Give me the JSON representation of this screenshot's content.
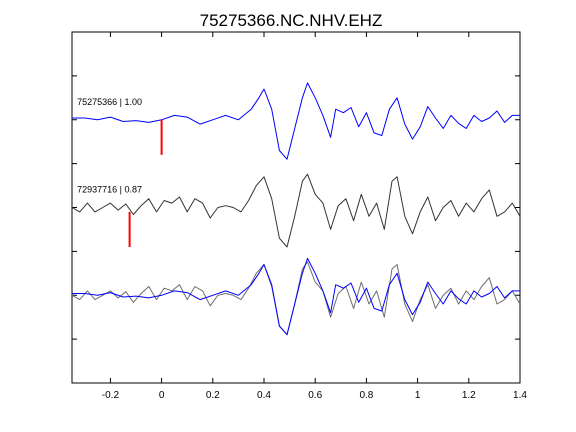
{
  "chart_data": {
    "type": "line",
    "title": "75275366.NC.NHV.EHZ",
    "xlabel": "",
    "ylabel": "",
    "xlim": [
      -0.35,
      1.4
    ],
    "xticks": [
      -0.2,
      0,
      0.2,
      0.4,
      0.6,
      0.8,
      1,
      1.2,
      1.4
    ],
    "xtick_labels": [
      "-0.2",
      "0",
      "0.2",
      "0.4",
      "0.6",
      "0.8",
      "1",
      "1.2",
      "1.4"
    ],
    "ylim": [
      0,
      4
    ],
    "yticks": [
      0.5,
      1,
      1.5,
      2,
      2.5,
      3,
      3.5
    ],
    "legend": "none",
    "grid": false,
    "colors": {
      "master": "#0000ff",
      "other": "#333333",
      "overlay_other": "#6e6e6e",
      "marker": "#ff0000"
    },
    "annotations": [
      {
        "text": "75275366 | 1.00",
        "x": -0.33,
        "y": 3.17
      },
      {
        "text": "72937716 | 0.87",
        "x": -0.33,
        "y": 2.17
      }
    ],
    "pick_markers": [
      {
        "x": 0.0,
        "y_from": 2.6,
        "y_to": 3.0,
        "trace": "75275366"
      },
      {
        "x": -0.125,
        "y_from": 1.55,
        "y_to": 1.95,
        "trace": "72937716"
      }
    ],
    "series": [
      {
        "id": "75275366",
        "offset": 3.0,
        "color": "#0000ff",
        "x": [
          -0.35,
          -0.3,
          -0.25,
          -0.2,
          -0.15,
          -0.1,
          -0.05,
          0.0,
          0.05,
          0.1,
          0.15,
          0.2,
          0.25,
          0.3,
          0.35,
          0.38,
          0.4,
          0.43,
          0.46,
          0.49,
          0.52,
          0.55,
          0.57,
          0.6,
          0.63,
          0.66,
          0.68,
          0.71,
          0.74,
          0.77,
          0.8,
          0.83,
          0.86,
          0.89,
          0.92,
          0.95,
          0.98,
          1.01,
          1.04,
          1.07,
          1.1,
          1.13,
          1.16,
          1.19,
          1.22,
          1.25,
          1.28,
          1.31,
          1.34,
          1.37,
          1.4
        ],
        "y": [
          0.02,
          0.02,
          0.0,
          0.03,
          -0.02,
          -0.01,
          -0.03,
          0.0,
          0.05,
          0.03,
          -0.05,
          0.0,
          0.05,
          0.0,
          0.12,
          0.25,
          0.35,
          0.12,
          -0.35,
          -0.45,
          -0.1,
          0.25,
          0.42,
          0.25,
          0.05,
          -0.2,
          0.12,
          0.08,
          0.14,
          -0.08,
          0.08,
          -0.15,
          -0.18,
          0.12,
          0.25,
          -0.05,
          -0.22,
          -0.08,
          0.15,
          0.02,
          -0.1,
          0.05,
          -0.04,
          -0.1,
          0.05,
          -0.02,
          0.02,
          0.1,
          -0.03,
          0.05,
          0.05
        ]
      },
      {
        "id": "72937716",
        "offset": 2.0,
        "color": "#333333",
        "x": [
          -0.35,
          -0.32,
          -0.29,
          -0.26,
          -0.23,
          -0.2,
          -0.17,
          -0.14,
          -0.11,
          -0.08,
          -0.05,
          -0.02,
          0.01,
          0.04,
          0.07,
          0.1,
          0.13,
          0.16,
          0.19,
          0.22,
          0.25,
          0.28,
          0.31,
          0.34,
          0.37,
          0.4,
          0.43,
          0.46,
          0.49,
          0.52,
          0.55,
          0.57,
          0.6,
          0.63,
          0.66,
          0.69,
          0.72,
          0.75,
          0.78,
          0.81,
          0.84,
          0.87,
          0.9,
          0.92,
          0.95,
          0.98,
          1.01,
          1.04,
          1.07,
          1.1,
          1.13,
          1.16,
          1.19,
          1.22,
          1.25,
          1.28,
          1.31,
          1.34,
          1.37,
          1.4
        ],
        "y": [
          0.0,
          -0.05,
          0.05,
          -0.05,
          0.0,
          0.05,
          -0.03,
          0.04,
          -0.08,
          0.02,
          0.1,
          -0.05,
          0.08,
          0.05,
          0.12,
          -0.05,
          0.1,
          0.05,
          -0.12,
          0.0,
          0.02,
          0.0,
          -0.05,
          0.08,
          0.25,
          0.35,
          0.1,
          -0.35,
          -0.45,
          -0.1,
          0.3,
          0.38,
          0.15,
          0.05,
          -0.25,
          0.02,
          0.1,
          -0.15,
          0.15,
          -0.1,
          0.05,
          -0.25,
          0.3,
          0.35,
          -0.1,
          -0.3,
          -0.05,
          0.12,
          -0.15,
          0.0,
          0.08,
          -0.1,
          0.05,
          -0.05,
          0.1,
          0.2,
          -0.1,
          -0.05,
          0.05,
          -0.1
        ]
      },
      {
        "id": "overlay-72937716",
        "offset": 1.0,
        "color": "#6e6e6e",
        "x": [
          -0.35,
          -0.32,
          -0.29,
          -0.26,
          -0.23,
          -0.2,
          -0.17,
          -0.14,
          -0.11,
          -0.08,
          -0.05,
          -0.02,
          0.01,
          0.04,
          0.07,
          0.1,
          0.13,
          0.16,
          0.19,
          0.22,
          0.25,
          0.28,
          0.31,
          0.34,
          0.37,
          0.4,
          0.43,
          0.46,
          0.49,
          0.52,
          0.55,
          0.57,
          0.6,
          0.63,
          0.66,
          0.69,
          0.72,
          0.75,
          0.78,
          0.81,
          0.84,
          0.87,
          0.9,
          0.92,
          0.95,
          0.98,
          1.01,
          1.04,
          1.07,
          1.1,
          1.13,
          1.16,
          1.19,
          1.22,
          1.25,
          1.28,
          1.31,
          1.34,
          1.37,
          1.4
        ],
        "y": [
          0.0,
          -0.05,
          0.05,
          -0.05,
          0.0,
          0.05,
          -0.03,
          0.04,
          -0.08,
          0.02,
          0.1,
          -0.05,
          0.08,
          0.05,
          0.12,
          -0.05,
          0.1,
          0.05,
          -0.12,
          0.0,
          0.02,
          0.0,
          -0.05,
          0.08,
          0.25,
          0.35,
          0.1,
          -0.35,
          -0.45,
          -0.1,
          0.3,
          0.38,
          0.15,
          0.05,
          -0.25,
          0.02,
          0.1,
          -0.15,
          0.15,
          -0.1,
          0.05,
          -0.25,
          0.3,
          0.35,
          -0.1,
          -0.3,
          -0.05,
          0.12,
          -0.15,
          0.0,
          0.08,
          -0.1,
          0.05,
          -0.05,
          0.1,
          0.2,
          -0.1,
          -0.05,
          0.05,
          -0.1
        ]
      },
      {
        "id": "overlay-75275366",
        "offset": 1.0,
        "color": "#0000ff",
        "x": [
          -0.35,
          -0.3,
          -0.25,
          -0.2,
          -0.15,
          -0.1,
          -0.05,
          0.0,
          0.05,
          0.1,
          0.15,
          0.2,
          0.25,
          0.3,
          0.35,
          0.38,
          0.4,
          0.43,
          0.46,
          0.49,
          0.52,
          0.55,
          0.57,
          0.6,
          0.63,
          0.66,
          0.68,
          0.71,
          0.74,
          0.77,
          0.8,
          0.83,
          0.86,
          0.89,
          0.92,
          0.95,
          0.98,
          1.01,
          1.04,
          1.07,
          1.1,
          1.13,
          1.16,
          1.19,
          1.22,
          1.25,
          1.28,
          1.31,
          1.34,
          1.37,
          1.4
        ],
        "y": [
          0.02,
          0.02,
          0.0,
          0.03,
          -0.02,
          -0.01,
          -0.03,
          0.0,
          0.05,
          0.03,
          -0.05,
          0.0,
          0.05,
          0.0,
          0.12,
          0.25,
          0.35,
          0.12,
          -0.35,
          -0.45,
          -0.1,
          0.25,
          0.42,
          0.25,
          0.05,
          -0.2,
          0.12,
          0.08,
          0.14,
          -0.08,
          0.08,
          -0.15,
          -0.18,
          0.12,
          0.25,
          -0.05,
          -0.22,
          -0.08,
          0.15,
          0.02,
          -0.1,
          0.05,
          -0.04,
          -0.1,
          0.05,
          -0.02,
          0.02,
          0.1,
          -0.03,
          0.05,
          0.05
        ]
      }
    ]
  }
}
